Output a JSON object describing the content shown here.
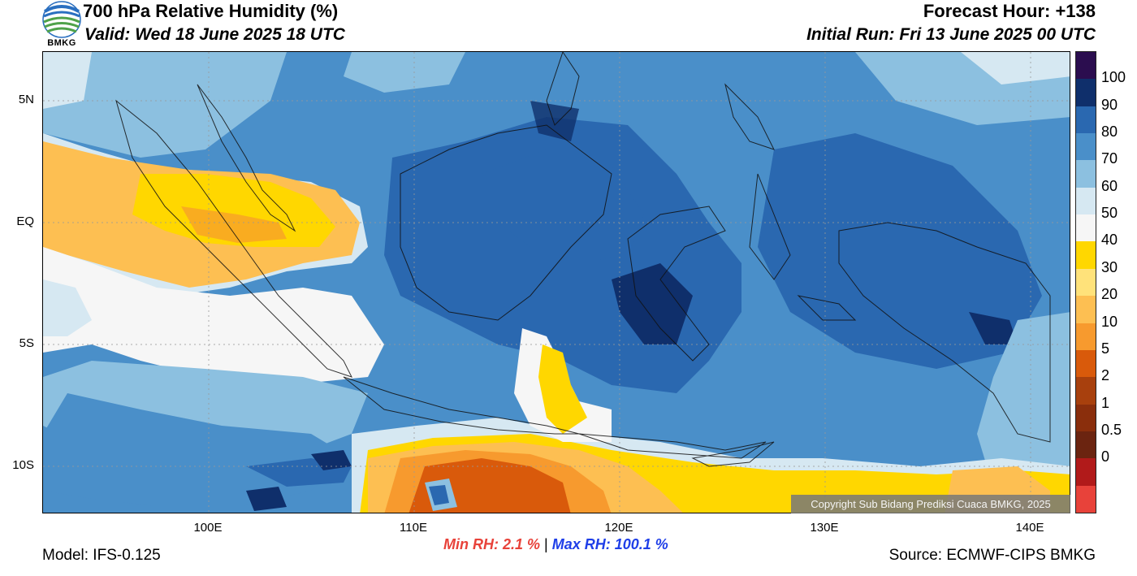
{
  "header": {
    "title": "700 hPa Relative Humidity (%)",
    "valid": "Valid: Wed 18 June 2025 18 UTC",
    "forecast_hour": "Forecast Hour: +138",
    "initial_run": "Initial Run: Fri 13 June 2025 00 UTC",
    "logo_text": "BMKG"
  },
  "map": {
    "lat_labels": [
      "5N",
      "EQ",
      "5S",
      "10S"
    ],
    "lon_labels": [
      "100E",
      "110E",
      "120E",
      "130E",
      "140E"
    ],
    "copyright": "Copyright Sub Bidang Prediksi Cuaca BMKG, 2025"
  },
  "colorbar": {
    "labels": [
      "100",
      "90",
      "80",
      "70",
      "60",
      "50",
      "40",
      "30",
      "20",
      "10",
      "5",
      "2",
      "1",
      "0.5",
      "0"
    ],
    "colors": [
      "#2b0d4f",
      "#0f2f6b",
      "#2a68b0",
      "#4a8fc9",
      "#8cc0e0",
      "#d6e8f2",
      "#f6f6f6",
      "#ffd700",
      "#ffe27a",
      "#fdbf52",
      "#f79a2e",
      "#d95a0b",
      "#a8400d",
      "#8a2e0c",
      "#6b2410",
      "#b11a1a",
      "#e8423a"
    ]
  },
  "stats": {
    "min_rh": "Min RH:   2.1 %",
    "separator": "|",
    "max_rh": "Max RH: 100.1 %"
  },
  "footer": {
    "model": "Model: IFS-0.125",
    "source": "Source: ECMWF-CIPS BMKG"
  }
}
